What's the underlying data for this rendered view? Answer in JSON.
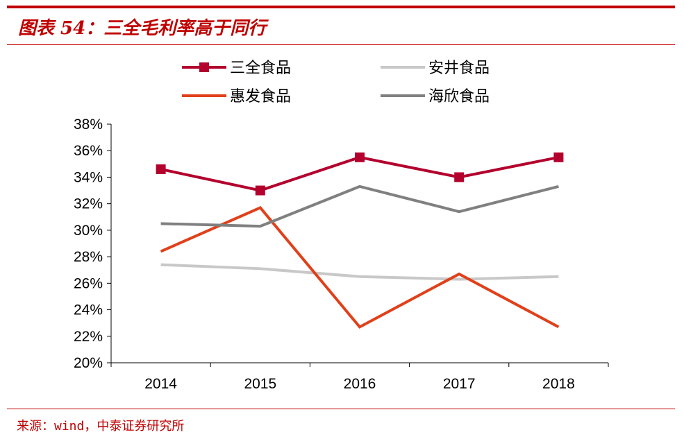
{
  "header": {
    "title": "图表 54：三全毛利率高于同行"
  },
  "footer": {
    "source": "来源：wind，中泰证券研究所"
  },
  "colors": {
    "accent": "#c00000"
  },
  "chart_data": {
    "type": "line",
    "title": "图表 54：三全毛利率高于同行",
    "xlabel": "",
    "ylabel": "",
    "categories": [
      "2014",
      "2015",
      "2016",
      "2017",
      "2018"
    ],
    "ylim": [
      20,
      38
    ],
    "yticks": [
      20,
      22,
      24,
      26,
      28,
      30,
      32,
      34,
      36,
      38
    ],
    "ytick_labels": [
      "20%",
      "22%",
      "24%",
      "26%",
      "28%",
      "30%",
      "32%",
      "34%",
      "36%",
      "38%"
    ],
    "grid": false,
    "legend_position": "top",
    "series": [
      {
        "name": "三全食品",
        "values": [
          34.6,
          33.0,
          35.5,
          34.0,
          35.5
        ],
        "color": "#b3002d",
        "marker": "square"
      },
      {
        "name": "安井食品",
        "values": [
          27.4,
          27.1,
          26.5,
          26.3,
          26.5
        ],
        "color": "#c8c8c8",
        "marker": "none"
      },
      {
        "name": "惠发食品",
        "values": [
          28.4,
          31.7,
          22.7,
          26.7,
          22.7
        ],
        "color": "#e0401a",
        "marker": "none"
      },
      {
        "name": "海欣食品",
        "values": [
          30.5,
          30.3,
          33.3,
          31.4,
          33.3
        ],
        "color": "#808080",
        "marker": "none"
      }
    ]
  }
}
